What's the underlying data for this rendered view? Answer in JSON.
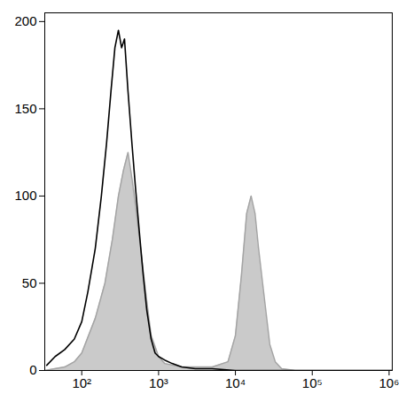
{
  "chart_data": {
    "type": "area",
    "log": "x",
    "xlim": [
      33,
      1100000
    ],
    "ylim": [
      0,
      205
    ],
    "xticks": [
      {
        "value": 100,
        "label": "10²"
      },
      {
        "value": 1000,
        "label": "10³"
      },
      {
        "value": 10000,
        "label": "10⁴"
      },
      {
        "value": 100000,
        "label": "10⁵"
      },
      {
        "value": 1000000,
        "label": "10⁶"
      }
    ],
    "yticks": [
      0,
      50,
      100,
      150,
      200
    ],
    "series": [
      {
        "type": "area",
        "color": "#c4c4c4",
        "x": [
          33,
          60,
          80,
          100,
          150,
          200,
          250,
          300,
          350,
          400,
          450,
          500,
          600,
          700,
          800,
          1000,
          1200,
          2000,
          5000,
          8000,
          10000,
          12000,
          14000,
          16000,
          18000,
          20000,
          24000,
          28000,
          33000,
          40000,
          60000,
          1100000
        ],
        "values": [
          0,
          2,
          5,
          10,
          30,
          50,
          75,
          100,
          115,
          125,
          110,
          95,
          65,
          40,
          20,
          8,
          4,
          2,
          2,
          5,
          20,
          55,
          90,
          100,
          90,
          70,
          40,
          15,
          5,
          1,
          0,
          0
        ]
      },
      {
        "type": "line",
        "color": "#000000",
        "x": [
          35,
          45,
          60,
          80,
          100,
          120,
          150,
          180,
          210,
          240,
          270,
          300,
          330,
          360,
          400,
          450,
          500,
          560,
          630,
          700,
          800,
          900,
          1000,
          1200,
          1500,
          2000,
          3000,
          5000,
          10000,
          1100000
        ],
        "values": [
          3,
          8,
          12,
          18,
          28,
          45,
          70,
          100,
          130,
          160,
          185,
          195,
          185,
          190,
          160,
          130,
          105,
          80,
          55,
          35,
          18,
          10,
          8,
          6,
          4,
          2,
          1,
          1,
          0,
          0
        ]
      }
    ]
  }
}
